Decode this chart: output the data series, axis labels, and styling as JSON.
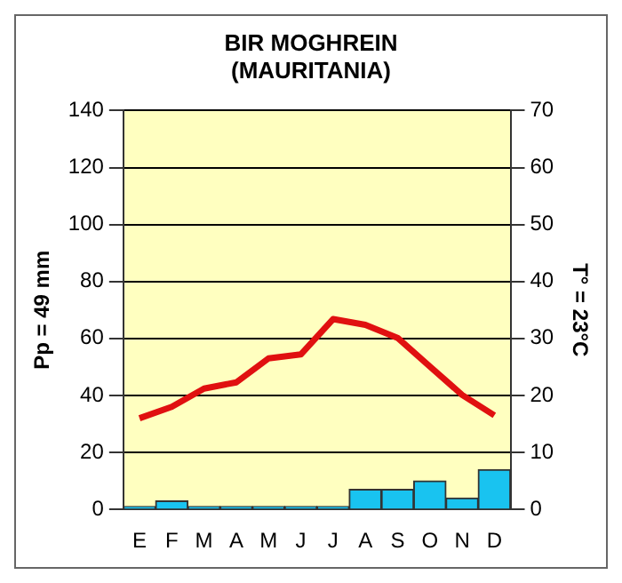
{
  "chart_data": {
    "type": "bar",
    "title": [
      "BIR MOGHREIN",
      "(MAURITANIA)"
    ],
    "ylabel": "Pp = 49 mm",
    "y2label": "T° = 23°C",
    "categories": [
      "E",
      "F",
      "M",
      "A",
      "M",
      "J",
      "J",
      "A",
      "S",
      "O",
      "N",
      "D"
    ],
    "series": [
      {
        "color": "#19c3f0",
        "values": [
          1,
          3,
          1,
          1,
          1,
          1,
          1,
          7,
          7,
          10,
          4,
          14
        ]
      },
      {
        "type": "line",
        "axis": "y2",
        "color": "#e01010",
        "values": [
          16,
          18,
          21.2,
          22.3,
          26.5,
          27.2,
          33.4,
          32.4,
          30.1,
          25.1,
          20.1,
          16.5
        ]
      }
    ],
    "ylim": [
      0,
      140
    ],
    "yticks": [
      0,
      20,
      40,
      60,
      80,
      100,
      120,
      140
    ],
    "y2lim": [
      0,
      70
    ],
    "y2ticks": [
      0,
      10,
      20,
      30,
      40,
      50,
      60,
      70
    ],
    "grid": "y",
    "legend": false,
    "marker": "none"
  }
}
